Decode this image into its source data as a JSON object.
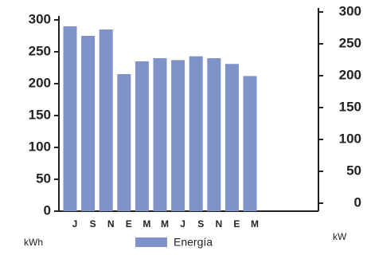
{
  "chart_data": {
    "type": "bar",
    "categories": [
      "J",
      "S",
      "N",
      "E",
      "M",
      "M",
      "J",
      "S",
      "N",
      "E",
      "M"
    ],
    "series": [
      {
        "name": "Energía",
        "color": "#7f93c9",
        "values": [
          290,
          275,
          285,
          215,
          235,
          240,
          237,
          243,
          240,
          231,
          212
        ]
      }
    ],
    "ylim": [
      0,
      300
    ],
    "yticks": [
      0,
      50,
      100,
      150,
      200,
      250,
      300
    ],
    "y2lim": [
      0,
      300
    ],
    "y2ticks": [
      0,
      50,
      100,
      150,
      200,
      250,
      300
    ],
    "y_label": "kWh",
    "y2_label": "kW",
    "legend": "bottom"
  }
}
